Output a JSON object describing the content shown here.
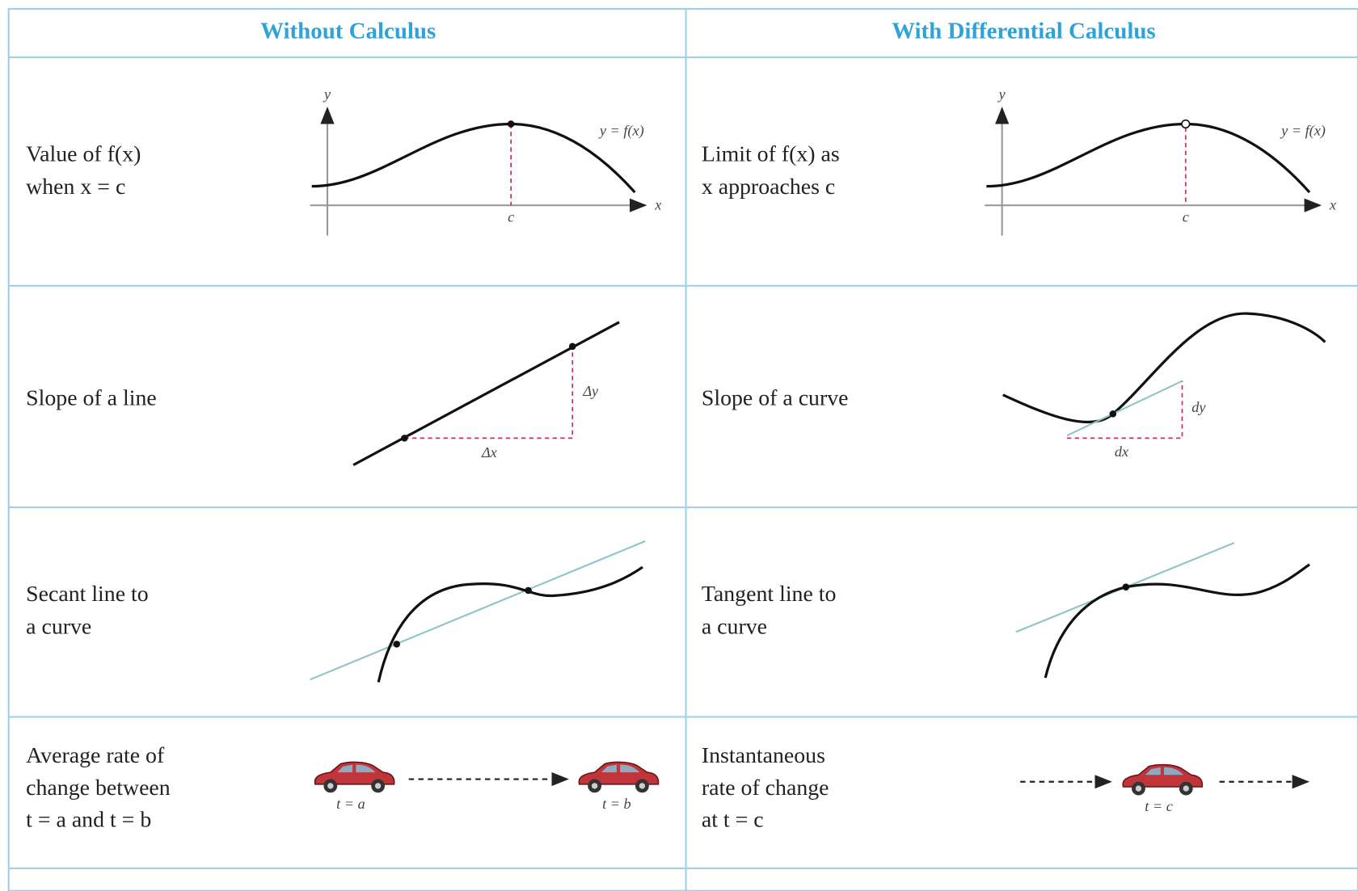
{
  "table": {
    "headers": [
      "Without Calculus",
      "With Differential Calculus"
    ],
    "rows": [
      {
        "without": {
          "label": [
            "Value of f(x)",
            "when x = c"
          ],
          "figure": {
            "y_axis": "y",
            "x_axis": "x",
            "point": "c",
            "curve": "y = f(x)"
          }
        },
        "with": {
          "label": [
            "Limit of f(x) as",
            "x approaches c"
          ],
          "figure": {
            "y_axis": "y",
            "x_axis": "x",
            "point": "c",
            "curve": "y = f(x)"
          }
        }
      },
      {
        "without": {
          "label": [
            "Slope of a line"
          ],
          "figure": {
            "rise": "Δy",
            "run": "Δx"
          }
        },
        "with": {
          "label": [
            "Slope of a curve"
          ],
          "figure": {
            "rise": "dy",
            "run": "dx"
          }
        }
      },
      {
        "without": {
          "label": [
            "Secant line to",
            "a curve"
          ]
        },
        "with": {
          "label": [
            "Tangent line to",
            "a curve"
          ]
        }
      },
      {
        "without": {
          "label": [
            "Average rate of",
            "change between",
            "t = a and t = b"
          ],
          "figure": {
            "start": "t = a",
            "end": "t = b"
          }
        },
        "with": {
          "label": [
            "Instantaneous",
            "rate of change",
            "at t = c"
          ],
          "figure": {
            "instant": "t = c"
          }
        }
      }
    ]
  }
}
